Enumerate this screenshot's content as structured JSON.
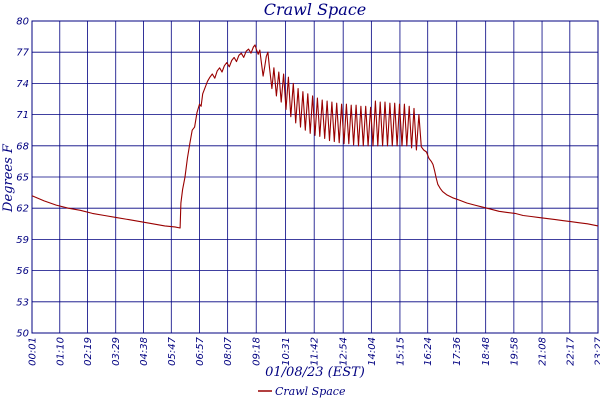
{
  "chart_data": {
    "type": "line",
    "title": "Crawl Space",
    "xlabel": "01/08/23 (EST)",
    "ylabel": "Degrees F",
    "ylim": [
      50,
      80
    ],
    "yticks": [
      80,
      77,
      74,
      71,
      68,
      65,
      62,
      59,
      56,
      53,
      50
    ],
    "xlim": [
      0,
      1406
    ],
    "xticks": [
      "00:01",
      "01:10",
      "02:19",
      "03:29",
      "04:38",
      "05:47",
      "06:57",
      "08:07",
      "09:18",
      "10:31",
      "11:42",
      "12:54",
      "14:04",
      "15:15",
      "16:24",
      "17:36",
      "18:48",
      "19:58",
      "21:08",
      "22:17",
      "23:27"
    ],
    "xtick_minutes": [
      0,
      69,
      138,
      208,
      277,
      346,
      416,
      486,
      557,
      630,
      701,
      773,
      843,
      914,
      983,
      1055,
      1127,
      1197,
      1267,
      1336,
      1406
    ],
    "grid": true,
    "legend": "bottom-center",
    "colors": {
      "line": "#990000",
      "grid": "#000080",
      "text": "#000080"
    },
    "series": [
      {
        "name": "Crawl Space",
        "points": [
          [
            0,
            63.2
          ],
          [
            30,
            62.7
          ],
          [
            60,
            62.3
          ],
          [
            90,
            62.0
          ],
          [
            120,
            61.8
          ],
          [
            150,
            61.5
          ],
          [
            180,
            61.3
          ],
          [
            210,
            61.1
          ],
          [
            240,
            60.9
          ],
          [
            270,
            60.7
          ],
          [
            300,
            60.5
          ],
          [
            330,
            60.3
          ],
          [
            355,
            60.2
          ],
          [
            368,
            60.1
          ],
          [
            370,
            62.5
          ],
          [
            374,
            63.8
          ],
          [
            380,
            65.0
          ],
          [
            386,
            66.8
          ],
          [
            392,
            68.2
          ],
          [
            398,
            69.5
          ],
          [
            404,
            69.8
          ],
          [
            410,
            71.2
          ],
          [
            416,
            72.0
          ],
          [
            420,
            71.8
          ],
          [
            424,
            73.0
          ],
          [
            430,
            73.6
          ],
          [
            436,
            74.2
          ],
          [
            442,
            74.6
          ],
          [
            448,
            74.9
          ],
          [
            454,
            74.5
          ],
          [
            460,
            75.2
          ],
          [
            466,
            75.5
          ],
          [
            472,
            75.1
          ],
          [
            478,
            75.7
          ],
          [
            484,
            76.0
          ],
          [
            490,
            75.6
          ],
          [
            496,
            76.2
          ],
          [
            502,
            76.5
          ],
          [
            508,
            76.1
          ],
          [
            514,
            76.7
          ],
          [
            520,
            76.9
          ],
          [
            526,
            76.5
          ],
          [
            532,
            77.1
          ],
          [
            538,
            77.3
          ],
          [
            544,
            76.9
          ],
          [
            550,
            77.5
          ],
          [
            554,
            77.7
          ],
          [
            558,
            77.2
          ],
          [
            562,
            76.8
          ],
          [
            566,
            77.2
          ],
          [
            570,
            75.9
          ],
          [
            574,
            74.7
          ],
          [
            578,
            75.6
          ],
          [
            582,
            76.6
          ],
          [
            586,
            77.0
          ],
          [
            590,
            75.5
          ],
          [
            596,
            73.5
          ],
          [
            601,
            75.5
          ],
          [
            607,
            72.8
          ],
          [
            613,
            75.1
          ],
          [
            619,
            72.2
          ],
          [
            625,
            74.9
          ],
          [
            631,
            71.5
          ],
          [
            637,
            74.6
          ],
          [
            643,
            70.8
          ],
          [
            649,
            74.0
          ],
          [
            655,
            70.2
          ],
          [
            661,
            73.5
          ],
          [
            667,
            69.8
          ],
          [
            673,
            73.2
          ],
          [
            679,
            69.5
          ],
          [
            685,
            73.0
          ],
          [
            691,
            69.2
          ],
          [
            697,
            72.8
          ],
          [
            703,
            69.0
          ],
          [
            709,
            72.6
          ],
          [
            715,
            68.9
          ],
          [
            721,
            72.4
          ],
          [
            727,
            68.7
          ],
          [
            733,
            72.3
          ],
          [
            739,
            68.5
          ],
          [
            745,
            72.2
          ],
          [
            751,
            68.4
          ],
          [
            757,
            72.1
          ],
          [
            763,
            68.3
          ],
          [
            769,
            72.0
          ],
          [
            775,
            68.2
          ],
          [
            781,
            72.0
          ],
          [
            787,
            68.2
          ],
          [
            793,
            71.9
          ],
          [
            799,
            68.1
          ],
          [
            805,
            71.9
          ],
          [
            811,
            68.0
          ],
          [
            817,
            71.8
          ],
          [
            823,
            68.0
          ],
          [
            829,
            71.8
          ],
          [
            835,
            68.0
          ],
          [
            841,
            71.7
          ],
          [
            847,
            68.0
          ],
          [
            853,
            72.3
          ],
          [
            859,
            68.0
          ],
          [
            865,
            72.2
          ],
          [
            871,
            68.0
          ],
          [
            877,
            72.2
          ],
          [
            883,
            68.0
          ],
          [
            889,
            72.1
          ],
          [
            895,
            68.0
          ],
          [
            901,
            72.1
          ],
          [
            907,
            68.0
          ],
          [
            913,
            72.0
          ],
          [
            919,
            68.0
          ],
          [
            925,
            72.0
          ],
          [
            931,
            68.0
          ],
          [
            937,
            71.8
          ],
          [
            943,
            67.8
          ],
          [
            949,
            71.6
          ],
          [
            955,
            67.6
          ],
          [
            961,
            71.0
          ],
          [
            967,
            67.9
          ],
          [
            973,
            67.6
          ],
          [
            980,
            67.4
          ],
          [
            986,
            66.8
          ],
          [
            992,
            66.5
          ],
          [
            996,
            66.2
          ],
          [
            1000,
            65.6
          ],
          [
            1004,
            64.9
          ],
          [
            1008,
            64.3
          ],
          [
            1014,
            63.9
          ],
          [
            1020,
            63.6
          ],
          [
            1030,
            63.3
          ],
          [
            1045,
            63.0
          ],
          [
            1060,
            62.8
          ],
          [
            1080,
            62.5
          ],
          [
            1100,
            62.3
          ],
          [
            1120,
            62.1
          ],
          [
            1140,
            61.9
          ],
          [
            1160,
            61.7
          ],
          [
            1180,
            61.6
          ],
          [
            1200,
            61.5
          ],
          [
            1220,
            61.3
          ],
          [
            1240,
            61.2
          ],
          [
            1260,
            61.1
          ],
          [
            1280,
            61.0
          ],
          [
            1300,
            60.9
          ],
          [
            1320,
            60.8
          ],
          [
            1340,
            60.7
          ],
          [
            1360,
            60.6
          ],
          [
            1380,
            60.5
          ],
          [
            1406,
            60.3
          ]
        ]
      }
    ]
  }
}
